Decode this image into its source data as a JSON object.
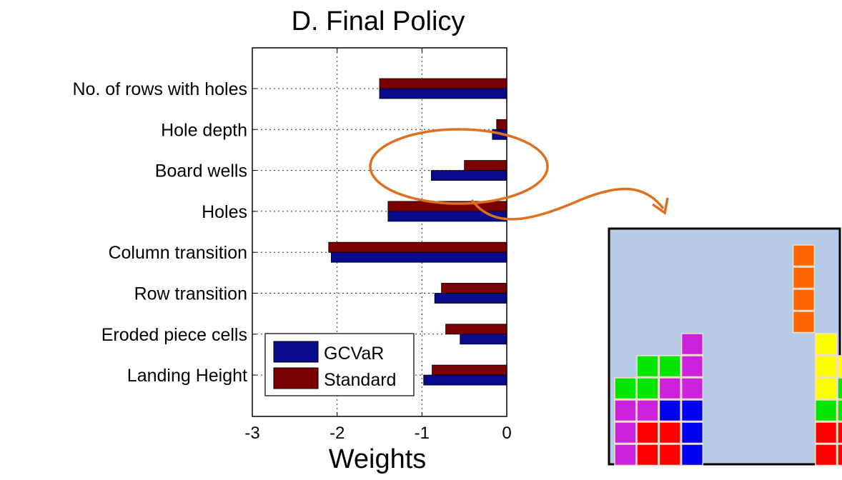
{
  "chart_data": {
    "type": "bar",
    "orientation": "horizontal",
    "title": "D. Final Policy",
    "xlabel": "Weights",
    "ylabel": "",
    "xlim": [
      -3,
      0
    ],
    "xticks": [
      "-3",
      "-2",
      "-1",
      "0"
    ],
    "grid": "dotted",
    "legend_position": "bottom-left",
    "categories": [
      "No. of rows with holes",
      "Hole depth",
      "Board wells",
      "Holes",
      "Column transition",
      "Row transition",
      "Eroded piece cells",
      "Landing Height"
    ],
    "series": [
      {
        "name": "GCVaR",
        "color": "#0a0a8c",
        "values": [
          -1.5,
          -0.17,
          -0.89,
          -1.4,
          -2.07,
          -0.85,
          -0.55,
          -0.98
        ]
      },
      {
        "name": "Standard",
        "color": "#7a0000",
        "values": [
          -1.5,
          -0.12,
          -0.5,
          -1.4,
          -2.1,
          -0.77,
          -0.72,
          -0.88
        ]
      }
    ]
  },
  "annotation": {
    "highlight_category": "Board wells",
    "color": "#e07020"
  },
  "tetris": {
    "background": "#b7cbe6",
    "colors": {
      "G": "#00e600",
      "M": "#cc22dd",
      "B": "#0000ee",
      "R": "#ff0000",
      "Y": "#ffff00",
      "C": "#66ccee",
      "O": "#ff6600"
    },
    "board": [
      "..................",
      "........O.........",
      "........O.........",
      "........O.........",
      "........O.........",
      "...M.....Y........",
      ".GGM.....YY.....C.",
      "GGMM.....YGG...CC.",
      "MMBB.....GGB..CY..",
      "MRRB.....RRB..YY..",
      "MRRB.....RRB..BY.."
    ]
  }
}
